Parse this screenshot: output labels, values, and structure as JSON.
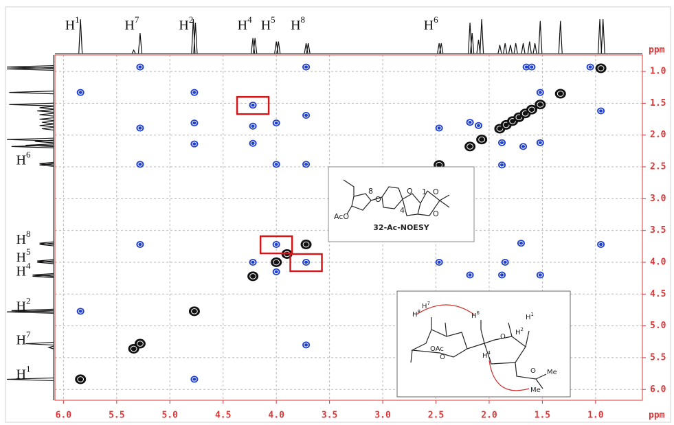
{
  "chart_data": {
    "type": "noesy",
    "x_unit": "ppm",
    "y_unit": "ppm",
    "xlim": [
      6.08,
      0.56
    ],
    "ylim": [
      0.74,
      6.17
    ],
    "xticks": [
      {
        "value": 6,
        "label": "6.0"
      },
      {
        "value": 5.5,
        "label": "5.5"
      },
      {
        "value": 5,
        "label": "5.0"
      },
      {
        "value": 4.5,
        "label": "4.5"
      },
      {
        "value": 4,
        "label": "4.0"
      },
      {
        "value": 3.5,
        "label": "3.5"
      },
      {
        "value": 3,
        "label": "3.0"
      },
      {
        "value": 2.5,
        "label": "2.5"
      },
      {
        "value": 2,
        "label": "2.0"
      },
      {
        "value": 1.5,
        "label": "1.5"
      },
      {
        "value": 1,
        "label": "1.0"
      }
    ],
    "yticks": [
      {
        "value": 1,
        "label": "1.0"
      },
      {
        "value": 1.5,
        "label": "1.5"
      },
      {
        "value": 2,
        "label": "2.0"
      },
      {
        "value": 2.5,
        "label": "2.5"
      },
      {
        "value": 3,
        "label": "3.0"
      },
      {
        "value": 3.5,
        "label": "3.5"
      },
      {
        "value": 4,
        "label": "4.0"
      },
      {
        "value": 4.5,
        "label": "4.5"
      },
      {
        "value": 5,
        "label": "5.0"
      },
      {
        "value": 5.5,
        "label": "5.5"
      },
      {
        "value": 6,
        "label": "6.0"
      }
    ],
    "grid": true,
    "axis_color": "#e03434",
    "diagonal_color": "#111111",
    "cross_color": "#1f3fd0",
    "highlight_color": "#d01818",
    "diagonal_peaks": {
      "x": [
        5.84,
        5.34,
        5.28,
        4.77,
        4.22,
        4.0,
        3.9,
        3.72,
        2.47,
        2.18,
        2.07,
        1.9,
        1.84,
        1.78,
        1.72,
        1.66,
        1.6,
        1.52,
        1.33,
        0.95
      ],
      "y": [
        5.84,
        5.36,
        5.28,
        4.77,
        4.22,
        4.0,
        3.87,
        3.72,
        2.47,
        2.18,
        2.07,
        1.9,
        1.84,
        1.78,
        1.72,
        1.66,
        1.6,
        1.52,
        1.35,
        0.95
      ]
    },
    "cross_peaks": {
      "x": [
        5.28,
        5.84,
        4.77,
        4.22,
        4.22,
        4.0,
        3.72,
        5.28,
        4.77,
        4.77,
        4.22,
        5.28,
        4.0,
        3.72,
        3.72,
        5.28,
        4.0,
        3.72,
        4.22,
        4.0,
        5.84,
        4.77,
        3.72,
        2.47,
        2.47,
        2.18,
        2.18,
        1.88,
        1.88,
        1.52,
        1.33,
        2.18,
        1.85,
        1.7,
        0.95,
        1.65,
        1.6,
        0.95,
        1.52,
        1.52,
        1.68,
        2.1,
        2.47,
        1.05,
        1.88
      ],
      "y": [
        0.93,
        1.33,
        1.33,
        1.53,
        1.86,
        1.81,
        1.69,
        1.89,
        1.81,
        2.14,
        2.13,
        2.46,
        2.46,
        2.46,
        0.93,
        3.72,
        3.72,
        4.0,
        4.0,
        4.15,
        4.77,
        5.84,
        5.3,
        4.0,
        1.89,
        1.8,
        4.2,
        2.47,
        4.2,
        4.2,
        4.77,
        4.77,
        4.0,
        3.7,
        3.72,
        0.93,
        0.93,
        1.62,
        1.33,
        2.12,
        2.18,
        1.85,
        5.28,
        0.93,
        2.12
      ],
      "highlight": [
        false,
        false,
        false,
        true,
        false,
        false,
        false,
        false,
        false,
        false,
        false,
        false,
        false,
        false,
        false,
        false,
        true,
        true,
        false,
        false,
        false,
        false,
        false,
        false,
        false,
        false,
        false,
        false,
        false,
        false,
        false,
        false,
        false,
        false,
        false,
        false,
        false,
        false,
        false,
        false,
        false,
        false,
        false,
        false,
        false
      ]
    },
    "projection": {
      "x": [
        5.84,
        5.34,
        5.28,
        4.78,
        4.76,
        4.22,
        4.2,
        4.0,
        3.98,
        3.72,
        3.7,
        2.47,
        2.45,
        2.18,
        2.16,
        2.1,
        2.07,
        1.9,
        1.85,
        1.8,
        1.75,
        1.68,
        1.62,
        1.57,
        1.52,
        1.33,
        0.96,
        0.93
      ],
      "height": [
        1.0,
        0.1,
        0.6,
        1.0,
        0.9,
        0.45,
        0.45,
        0.35,
        0.35,
        0.3,
        0.3,
        0.3,
        0.3,
        0.9,
        0.6,
        0.4,
        1.0,
        0.25,
        0.3,
        0.25,
        0.3,
        0.3,
        0.35,
        0.3,
        0.95,
        0.95,
        1.0,
        1.0
      ]
    },
    "top_labels": [
      {
        "atom": "H",
        "number": "1",
        "x": 5.84
      },
      {
        "atom": "H",
        "number": "7",
        "x": 5.28
      },
      {
        "atom": "H",
        "number": "2",
        "x": 4.77
      },
      {
        "atom": "H",
        "number": "4",
        "x": 4.22
      },
      {
        "atom": "H",
        "number": "5",
        "x": 4.0
      },
      {
        "atom": "H",
        "number": "8",
        "x": 3.72
      },
      {
        "atom": "H",
        "number": "6",
        "x": 2.47
      }
    ],
    "side_labels": [
      {
        "atom": "H",
        "number": "6",
        "y": 2.47
      },
      {
        "atom": "H",
        "number": "8",
        "y": 3.72
      },
      {
        "atom": "H",
        "number": "5",
        "y": 4.0
      },
      {
        "atom": "H",
        "number": "4",
        "y": 4.22
      },
      {
        "atom": "H",
        "number": "2",
        "y": 4.77
      },
      {
        "atom": "H",
        "number": "7",
        "y": 5.3
      },
      {
        "atom": "H",
        "number": "1",
        "y": 5.84
      }
    ]
  },
  "inset": {
    "compound_label": "32-Ac-NOESY",
    "substituent": "AcO",
    "ring_oxygens": [
      "O",
      "O",
      "O",
      "O"
    ],
    "locants": [
      "8",
      "4",
      "1"
    ]
  },
  "conformer": {
    "protons": [
      {
        "atom": "H",
        "number": "8"
      },
      {
        "atom": "H",
        "number": "7"
      },
      {
        "atom": "H",
        "number": "6"
      },
      {
        "atom": "H",
        "number": "4"
      },
      {
        "atom": "H",
        "number": "2"
      },
      {
        "atom": "H",
        "number": "1"
      }
    ],
    "groups": [
      "OAc",
      "O",
      "O",
      "O",
      "Me",
      "Me"
    ]
  }
}
